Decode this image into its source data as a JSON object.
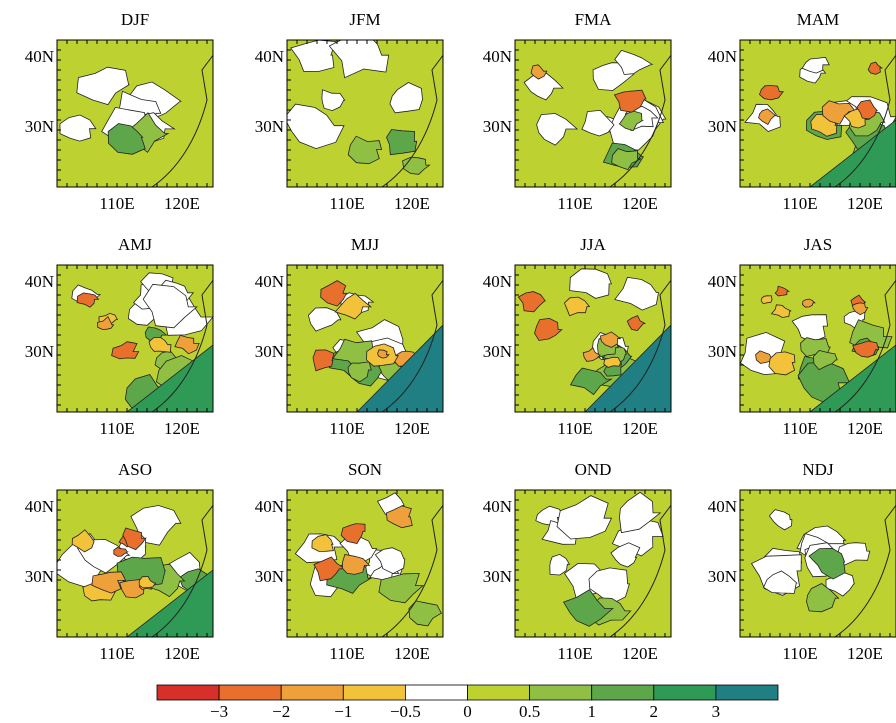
{
  "panels": [
    {
      "title": "DJF",
      "yticks": [
        "40N",
        "30N"
      ],
      "xticks": [
        "110E",
        "120E"
      ]
    },
    {
      "title": "JFM",
      "yticks": [
        "40N",
        "30N"
      ],
      "xticks": [
        "110E",
        "120E"
      ]
    },
    {
      "title": "FMA",
      "yticks": [
        "40N",
        "30N"
      ],
      "xticks": [
        "110E",
        "120E"
      ]
    },
    {
      "title": "MAM",
      "yticks": [
        "40N",
        "30N"
      ],
      "xticks": [
        "110E",
        "120E"
      ]
    },
    {
      "title": "AMJ",
      "yticks": [
        "40N",
        "30N"
      ],
      "xticks": [
        "110E",
        "120E"
      ]
    },
    {
      "title": "MJJ",
      "yticks": [
        "40N",
        "30N"
      ],
      "xticks": [
        "110E",
        "120E"
      ]
    },
    {
      "title": "JJA",
      "yticks": [
        "40N",
        "30N"
      ],
      "xticks": [
        "110E",
        "120E"
      ]
    },
    {
      "title": "JAS",
      "yticks": [
        "40N",
        "30N"
      ],
      "xticks": [
        "110E",
        "120E"
      ]
    },
    {
      "title": "ASO",
      "yticks": [
        "40N",
        "30N"
      ],
      "xticks": [
        "110E",
        "120E"
      ]
    },
    {
      "title": "SON",
      "yticks": [
        "40N",
        "30N"
      ],
      "xticks": [
        "110E",
        "120E"
      ]
    },
    {
      "title": "OND",
      "yticks": [
        "40N",
        "30N"
      ],
      "xticks": [
        "110E",
        "120E"
      ]
    },
    {
      "title": "NDJ",
      "yticks": [
        "40N",
        "30N"
      ],
      "xticks": [
        "110E",
        "120E"
      ]
    }
  ],
  "colorbar": {
    "colors": [
      "#d7302a",
      "#e8702c",
      "#eea03a",
      "#f2c23a",
      "#ffffff",
      "#bdd230",
      "#8fc043",
      "#5ea64a",
      "#2f9a55",
      "#1f7f83"
    ],
    "labels": [
      "−3",
      "−2",
      "−1",
      "−0.5",
      "0",
      "0.5",
      "1",
      "2",
      "3"
    ]
  }
}
